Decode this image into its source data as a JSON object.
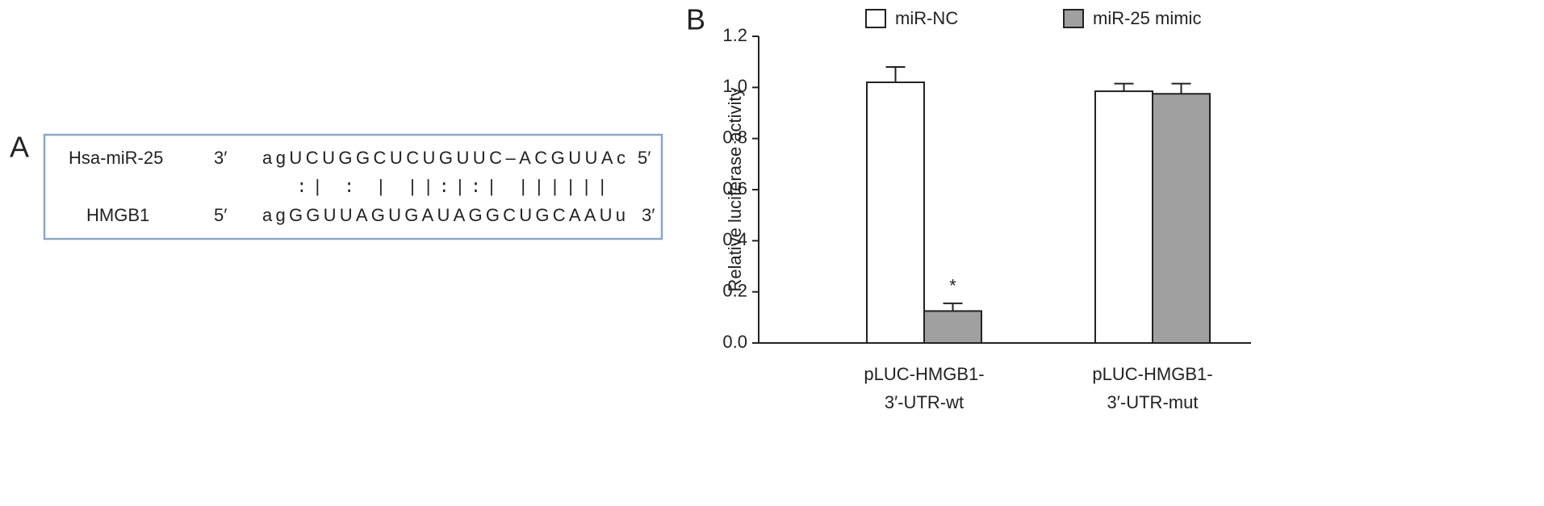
{
  "panel_a": {
    "label": "A",
    "rows": [
      {
        "name": "Hsa-miR-25",
        "left_end": "3′",
        "sequence": "agUCUGGCUCUGUUC–ACGUUAc",
        "right_end": "5′"
      },
      {
        "name": "HMGB1",
        "left_end": "5′",
        "sequence": "agGGUUAGUGAUAGGCUGCAAUu",
        "right_end": "3′"
      }
    ],
    "pairing": "  :| : | ||:|:| ||||||"
  },
  "chart_data": {
    "type": "bar",
    "panel_label": "B",
    "y_label": "Relative luciferase activity",
    "categories": [
      [
        "pLUC-HMGB1-",
        "3′-UTR-wt"
      ],
      [
        "pLUC-HMGB1-",
        "3′-UTR-mut"
      ]
    ],
    "series": [
      {
        "name": "miR-NC",
        "color": "#ffffff",
        "values": [
          1.02,
          0.985
        ],
        "errors": [
          0.06,
          0.03
        ]
      },
      {
        "name": "miR-25 mimic",
        "color": "#a0a0a0",
        "values": [
          0.125,
          0.975
        ],
        "errors": [
          0.03,
          0.04
        ]
      }
    ],
    "annotations": [
      {
        "text": "*",
        "series": 1,
        "category": 0
      }
    ],
    "ylim": [
      0,
      1.2
    ],
    "yticks": [
      {
        "value": 0,
        "label": "0.0"
      },
      0.2,
      0.4,
      0.6,
      0.8,
      {
        "value": 1,
        "label": "1.0"
      },
      1.2
    ],
    "legend": "top"
  }
}
